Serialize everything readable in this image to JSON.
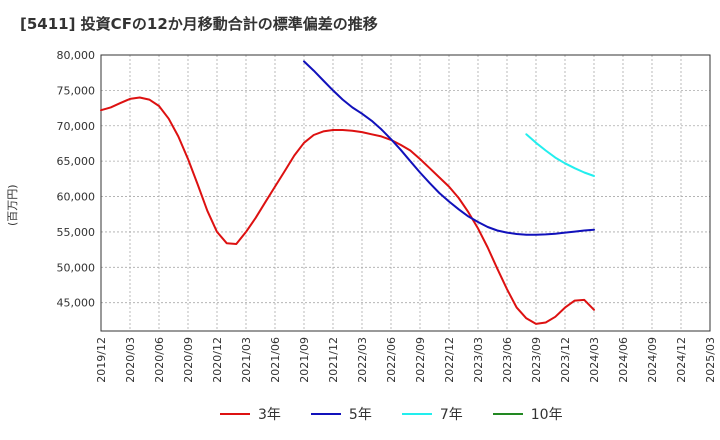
{
  "chart_data": {
    "type": "line",
    "title": "[5411]  投資CFの12か月移動合計の標準偏差の推移",
    "ylabel": "(百万円)",
    "ylim": [
      41000,
      80000
    ],
    "yticks": [
      45000,
      50000,
      55000,
      60000,
      65000,
      70000,
      75000,
      80000
    ],
    "ytick_labels": [
      "45,000",
      "50,000",
      "55,000",
      "60,000",
      "65,000",
      "70,000",
      "75,000",
      "80,000"
    ],
    "xtick_labels": [
      "2019/12",
      "2020/03",
      "2020/06",
      "2020/09",
      "2020/12",
      "2021/03",
      "2021/06",
      "2021/09",
      "2021/12",
      "2022/03",
      "2022/06",
      "2022/09",
      "2022/12",
      "2023/03",
      "2023/06",
      "2023/09",
      "2023/12",
      "2024/03",
      "2024/06",
      "2024/09",
      "2024/12",
      "2025/03"
    ],
    "grid": true,
    "legend_position": "bottom",
    "series": [
      {
        "name": "3年",
        "color": "#dd1111",
        "x": [
          "2019/12",
          "2020/01",
          "2020/02",
          "2020/03",
          "2020/04",
          "2020/05",
          "2020/06",
          "2020/07",
          "2020/08",
          "2020/09",
          "2020/10",
          "2020/11",
          "2020/12",
          "2021/01",
          "2021/02",
          "2021/03",
          "2021/04",
          "2021/05",
          "2021/06",
          "2021/07",
          "2021/08",
          "2021/09",
          "2021/10",
          "2021/11",
          "2021/12",
          "2022/01",
          "2022/02",
          "2022/03",
          "2022/04",
          "2022/05",
          "2022/06",
          "2022/07",
          "2022/08",
          "2022/09",
          "2022/10",
          "2022/11",
          "2022/12",
          "2023/01",
          "2023/02",
          "2023/03",
          "2023/04",
          "2023/05",
          "2023/06",
          "2023/07",
          "2023/08",
          "2023/09",
          "2023/10",
          "2023/11",
          "2023/12",
          "2024/01",
          "2024/02",
          "2024/03"
        ],
        "values": [
          72200,
          72600,
          73200,
          73800,
          74000,
          73700,
          72800,
          71000,
          68500,
          65300,
          61700,
          58000,
          55000,
          53400,
          53300,
          55000,
          57000,
          59200,
          61400,
          63600,
          65800,
          67600,
          68700,
          69200,
          69400,
          69400,
          69300,
          69100,
          68800,
          68500,
          68000,
          67300,
          66500,
          65300,
          64000,
          62700,
          61400,
          59800,
          57800,
          55500,
          52800,
          49800,
          46900,
          44300,
          42800,
          42000,
          42200,
          43000,
          44300,
          45300,
          45400,
          44000
        ]
      },
      {
        "name": "5年",
        "color": "#1111bb",
        "x": [
          "2021/09",
          "2021/10",
          "2021/11",
          "2021/12",
          "2022/01",
          "2022/02",
          "2022/03",
          "2022/04",
          "2022/05",
          "2022/06",
          "2022/07",
          "2022/08",
          "2022/09",
          "2022/10",
          "2022/11",
          "2022/12",
          "2023/01",
          "2023/02",
          "2023/03",
          "2023/04",
          "2023/05",
          "2023/06",
          "2023/07",
          "2023/08",
          "2023/09",
          "2023/10",
          "2023/11",
          "2023/12",
          "2024/01",
          "2024/02",
          "2024/03"
        ],
        "values": [
          79100,
          77800,
          76400,
          75000,
          73700,
          72600,
          71700,
          70700,
          69500,
          68100,
          66600,
          65000,
          63400,
          61900,
          60500,
          59300,
          58200,
          57200,
          56400,
          55700,
          55200,
          54900,
          54700,
          54600,
          54600,
          54650,
          54750,
          54900,
          55050,
          55200,
          55300
        ]
      },
      {
        "name": "7年",
        "color": "#22eeee",
        "x": [
          "2023/08",
          "2023/09",
          "2023/10",
          "2023/11",
          "2023/12",
          "2024/01",
          "2024/02",
          "2024/03"
        ],
        "values": [
          68800,
          67600,
          66500,
          65500,
          64700,
          64000,
          63400,
          62900
        ]
      },
      {
        "name": "10年",
        "color": "#228822",
        "x": [],
        "values": []
      }
    ]
  }
}
